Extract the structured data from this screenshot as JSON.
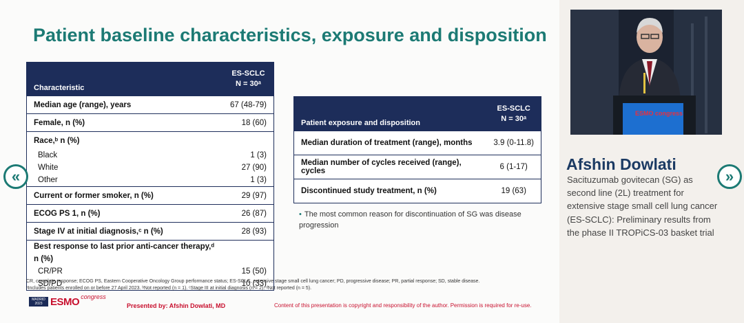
{
  "slide": {
    "title": "Patient baseline characteristics, exposure and disposition",
    "table1": {
      "col1": "Characteristic",
      "col2_line1": "ES-SCLC",
      "col2_line2": "N = 30ᵃ",
      "rows": [
        {
          "label": "Median age (range), years",
          "value": "67 (48-79)"
        },
        {
          "label": "Female, n (%)",
          "value": "18 (60)"
        },
        {
          "label": "Race,ᵇ n (%)",
          "value": ""
        },
        {
          "label": "Black",
          "value": "1 (3)"
        },
        {
          "label": "White",
          "value": "27 (90)"
        },
        {
          "label": "Other",
          "value": "1 (3)"
        },
        {
          "label": "Current or former smoker, n (%)",
          "value": "29 (97)"
        },
        {
          "label": "ECOG PS 1, n (%)",
          "value": "26 (87)"
        },
        {
          "label": "Stage IV at initial diagnosis,ᶜ n (%)",
          "value": "28 (93)"
        },
        {
          "label": "Best response to last prior anti-cancer therapy,ᵈ n (%)",
          "value": ""
        },
        {
          "label": "CR/PR",
          "value": "15 (50)"
        },
        {
          "label": "SD/PD",
          "value": "10 (33)"
        }
      ]
    },
    "table2": {
      "col1": "Patient exposure and disposition",
      "col2_line1": "ES-SCLC",
      "col2_line2": "N = 30ᵃ",
      "rows": [
        {
          "label": "Median duration of treatment (range), months",
          "value": "3.9 (0-11.8)"
        },
        {
          "label": "Median number of cycles received (range), cycles",
          "value": "6 (1-17)"
        },
        {
          "label": "Discontinued study treatment, n (%)",
          "value": "19 (63)"
        }
      ]
    },
    "note": "The most common reason for discontinuation of SG was disease progression",
    "footnote1": "CR, complete response; ECOG PS, Eastern Cooperative Oncology Group performance status; ES-SCLC, extensive stage small cell lung cancer; PD, progressive disease; PR, partial response; SD, stable disease.",
    "footnote2": "ᵃIncludes patients enrolled on or before 27 April 2023. ᵇNot reported  (n = 1). ᶜStage III at initial diagnosis (n = 2). ᵈNot reported (n = 5).",
    "logo": {
      "city": "MADRID",
      "year": "2023",
      "brand": "ESMO",
      "suffix": "congress"
    },
    "presented_by": "Presented by: Afshin Dowlati, MD",
    "copyright": "Content of this presentation is copyright and responsibility of the author. Permission is required for re-use."
  },
  "speaker": {
    "name": "Afshin Dowlati",
    "talk_title": "Sacituzumab govitecan (SG) as second line (2L) treatment for extensive stage small cell lung cancer (ES-SCLC): Preliminary results from the phase II TROPiCS-03 basket trial",
    "podium_screen": "ESMO congress"
  },
  "nav": {
    "prev_icon": "chevron-double-left-icon",
    "next_icon": "chevron-double-right-icon",
    "prev_glyph": "«",
    "next_glyph": "»"
  },
  "colors": {
    "title": "#1c7a74",
    "table_header": "#1d2d5a",
    "speaker_name": "#1b3a63",
    "accent_red": "#c8102e"
  }
}
